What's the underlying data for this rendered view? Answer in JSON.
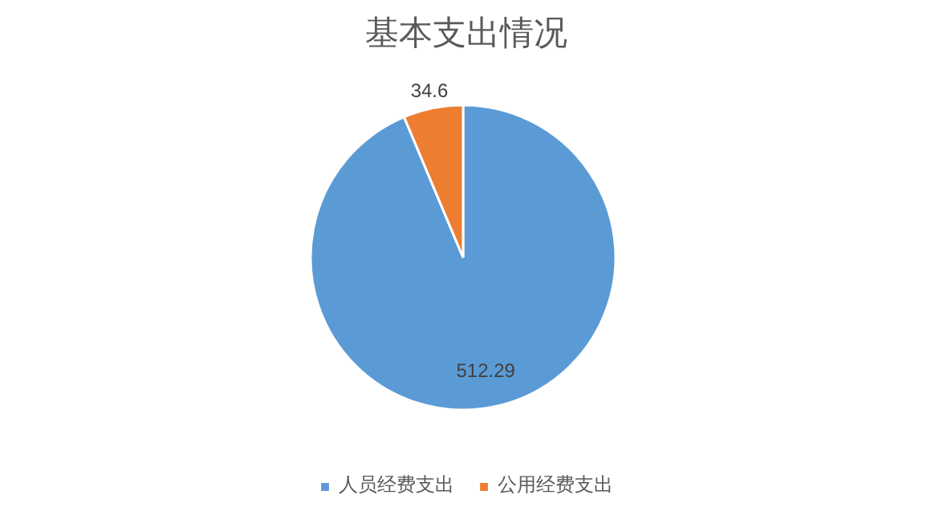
{
  "chart_data": {
    "type": "pie",
    "title": "基本支出情况",
    "categories": [
      "人员经费支出",
      "公用经费支出"
    ],
    "values": [
      512.29,
      34.6
    ],
    "colors": [
      "#5b9bd5",
      "#ed7d31"
    ],
    "data_labels": true,
    "legend": "bottom"
  }
}
